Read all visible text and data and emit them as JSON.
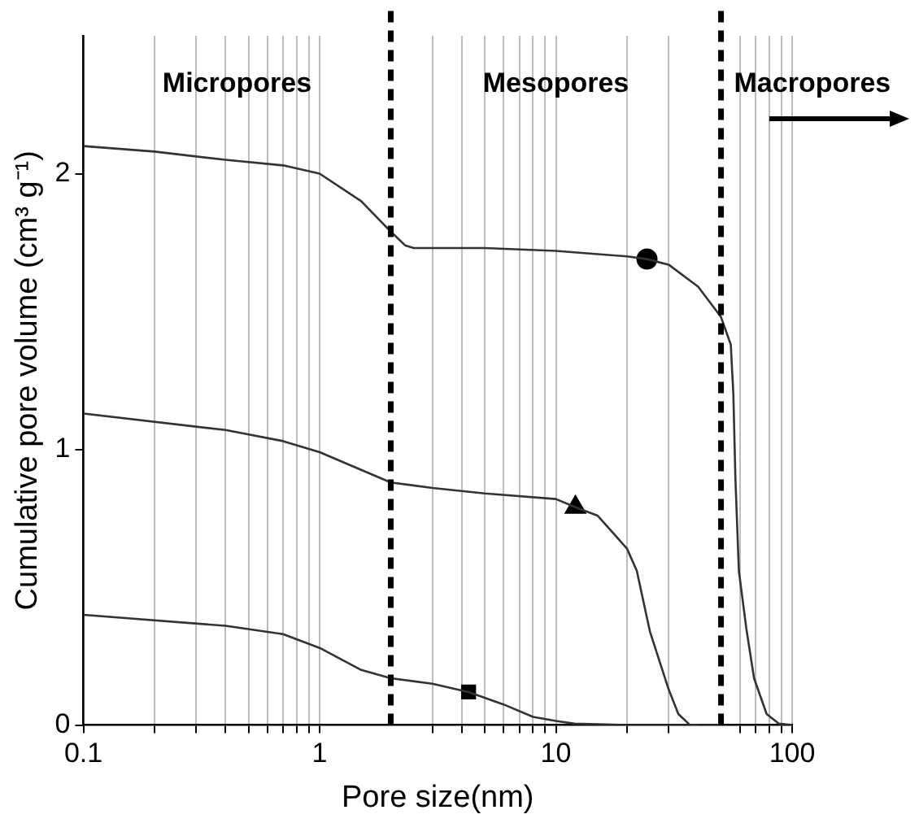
{
  "chart_data": {
    "type": "line",
    "xlabel": "Pore size(nm)",
    "ylabel": "Cumulative pore volume (cm³ g⁻¹)",
    "log": "x",
    "grid": "x",
    "legend": false,
    "xlim": [
      0.1,
      100
    ],
    "ylim": [
      0,
      2.5
    ],
    "xticks": [
      0.1,
      {
        "value": 0.2,
        "label": null
      },
      {
        "value": 0.3,
        "label": null
      },
      {
        "value": 0.4,
        "label": null
      },
      {
        "value": 0.5,
        "label": null
      },
      {
        "value": 0.6,
        "label": null
      },
      {
        "value": 0.7,
        "label": null
      },
      {
        "value": 0.8,
        "label": null
      },
      {
        "value": 0.9,
        "label": null
      },
      1,
      {
        "value": 3,
        "label": null
      },
      {
        "value": 4,
        "label": null
      },
      {
        "value": 5,
        "label": null
      },
      {
        "value": 6,
        "label": null
      },
      {
        "value": 7,
        "label": null
      },
      {
        "value": 8,
        "label": null
      },
      {
        "value": 9,
        "label": null
      },
      10,
      {
        "value": 20,
        "label": null
      },
      {
        "value": 30,
        "label": null
      },
      {
        "value": 60,
        "label": null
      },
      {
        "value": 70,
        "label": null
      },
      {
        "value": 80,
        "label": null
      },
      {
        "value": 90,
        "label": null
      },
      100
    ],
    "yticks": [
      0,
      1,
      2
    ],
    "series": [
      {
        "type": "line",
        "color": "#333333",
        "marker": "none",
        "x": [
          0.1,
          0.2,
          0.4,
          0.7,
          1,
          1.5,
          1.8,
          2,
          2.3,
          2.5,
          5,
          10,
          20,
          24.3,
          30,
          40,
          50,
          55,
          56.4,
          57.5,
          59.5,
          64,
          69,
          78,
          88,
          100
        ],
        "values": [
          2.1,
          2.08,
          2.05,
          2.03,
          2.0,
          1.9,
          1.83,
          1.79,
          1.74,
          1.73,
          1.73,
          1.72,
          1.7,
          1.69,
          1.67,
          1.59,
          1.48,
          1.38,
          1.2,
          0.9,
          0.56,
          0.35,
          0.17,
          0.04,
          0.005,
          0
        ]
      },
      {
        "type": "line",
        "color": "#333333",
        "marker": "none",
        "x": [
          0.1,
          0.4,
          0.7,
          1,
          2,
          3,
          5,
          10,
          12.1,
          15,
          20,
          22,
          25,
          30,
          33,
          37,
          50
        ],
        "values": [
          1.13,
          1.07,
          1.03,
          0.99,
          0.88,
          0.86,
          0.84,
          0.82,
          0.79,
          0.76,
          0.64,
          0.56,
          0.34,
          0.13,
          0.04,
          0,
          0
        ]
      },
      {
        "type": "line",
        "color": "#333333",
        "marker": "none",
        "x": [
          0.1,
          0.4,
          0.7,
          1,
          1.5,
          2,
          3,
          4.27,
          6,
          8,
          10,
          12,
          20,
          40
        ],
        "values": [
          0.4,
          0.36,
          0.33,
          0.28,
          0.2,
          0.17,
          0.15,
          0.12,
          0.075,
          0.03,
          0.015,
          0.005,
          0,
          0
        ]
      },
      {
        "type": "scatter",
        "color": "#000000",
        "marker": "circle",
        "x": [
          24.3
        ],
        "values": [
          1.69
        ]
      },
      {
        "type": "scatter",
        "color": "#000000",
        "marker": "triangle",
        "x": [
          12.1
        ],
        "values": [
          0.79
        ]
      },
      {
        "type": "scatter",
        "color": "#000000",
        "marker": "square",
        "x": [
          4.27
        ],
        "values": [
          0.12
        ]
      }
    ],
    "ref_lines": [
      {
        "axis": "x",
        "value": 2,
        "color": "#000000",
        "line_style": "dashed"
      },
      {
        "axis": "x",
        "value": 50,
        "color": "#000000",
        "line_style": "dashed"
      }
    ],
    "annotations": [
      "Micropores",
      "Mesopores",
      "Macropores"
    ]
  }
}
